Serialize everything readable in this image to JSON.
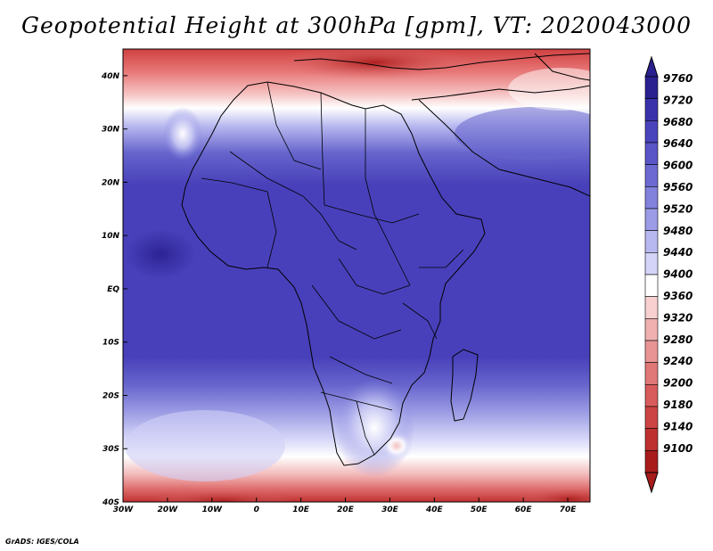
{
  "title": "Geopotential Height at 300hPa [gpm], VT: 2020043000",
  "credit": "GrADS: IGES/COLA",
  "map": {
    "lon_range": [
      -30,
      75
    ],
    "lat_range": [
      -40,
      45
    ],
    "lat_ticks": [
      "40N",
      "30N",
      "20N",
      "10N",
      "EQ",
      "10S",
      "20S",
      "30S",
      "40S"
    ],
    "lat_tick_values": [
      40,
      30,
      20,
      10,
      0,
      -10,
      -20,
      -30,
      -40
    ],
    "lon_ticks": [
      "30W",
      "20W",
      "10W",
      "0",
      "10E",
      "20E",
      "30E",
      "40E",
      "50E",
      "60E",
      "70E"
    ],
    "lon_tick_values": [
      -30,
      -20,
      -10,
      0,
      10,
      20,
      30,
      40,
      50,
      60,
      70
    ]
  },
  "colorbar": {
    "levels": [
      "9760",
      "9720",
      "9680",
      "9640",
      "9600",
      "9560",
      "9520",
      "9480",
      "9440",
      "9400",
      "9360",
      "9320",
      "9280",
      "9240",
      "9200",
      "9180",
      "9140",
      "9100"
    ],
    "colors_top_to_bottom": [
      "#2a2090",
      "#3a32aa",
      "#4a44bc",
      "#5a56c8",
      "#6c6ad2",
      "#8281dc",
      "#9c9ce6",
      "#b8b8f0",
      "#d4d4f8",
      "#ffffff",
      "#f8d0d0",
      "#f0b0b0",
      "#e89494",
      "#e07878",
      "#d85c5c",
      "#cc4444",
      "#be3030",
      "#a81c1c"
    ]
  },
  "field_colors": {
    "deep": "#3b35b5",
    "core": "#4038b8",
    "mid": "#5a56c8",
    "light": "#8a8ae0",
    "pale": "#c8c8f4",
    "white": "#ffffff",
    "pink": "#f4c0c0",
    "red": "#e07070",
    "darkred": "#c03030"
  }
}
